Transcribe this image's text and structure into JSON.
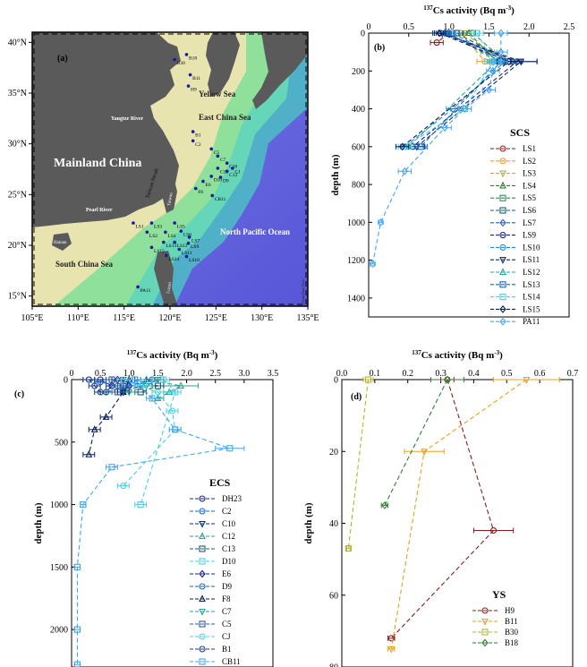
{
  "figure": {
    "map": {
      "panel_label": "(a)",
      "regions": {
        "mainland": "Mainland China",
        "yellow_sea": "Yellow Sea",
        "east_china_sea": "East China Sea",
        "south_china_sea": "South China Sea",
        "north_pacific": "North Pacific Ocean",
        "yangtze": "Yangtze River",
        "pearl": "Pearl River",
        "taiwan_strait": "Taiwan Strait",
        "taiwan": "Taiwan",
        "luzon": "Luzon",
        "hainan": "Hainan",
        "odv": "Ocean Data View"
      },
      "lon_ticks": [
        "105°E",
        "110°E",
        "115°E",
        "120°E",
        "125°E",
        "130°E",
        "135°E"
      ],
      "lat_ticks": [
        "40°N",
        "35°N",
        "30°N",
        "25°N",
        "20°N",
        "15°N"
      ],
      "stations": [
        {
          "name": "B18",
          "lon": 121.8,
          "lat": 38.8
        },
        {
          "name": "B30",
          "lon": 120.5,
          "lat": 38.3
        },
        {
          "name": "B11",
          "lon": 122.2,
          "lat": 36.8
        },
        {
          "name": "H9",
          "lon": 122.0,
          "lat": 35.7
        },
        {
          "name": "B1",
          "lon": 122.5,
          "lat": 31.2
        },
        {
          "name": "C2",
          "lon": 122.5,
          "lat": 30.3
        },
        {
          "name": "C5",
          "lon": 124.5,
          "lat": 29.5
        },
        {
          "name": "C7",
          "lon": 125.2,
          "lat": 28.8
        },
        {
          "name": "C10",
          "lon": 126.2,
          "lat": 28.1
        },
        {
          "name": "CJ",
          "lon": 126.8,
          "lat": 27.6
        },
        {
          "name": "C13",
          "lon": 125.2,
          "lat": 27.6
        },
        {
          "name": "C12",
          "lon": 126.2,
          "lat": 27.3
        },
        {
          "name": "D10",
          "lon": 124.5,
          "lat": 26.8
        },
        {
          "name": "D9",
          "lon": 125.5,
          "lat": 26.7
        },
        {
          "name": "E6",
          "lon": 123.6,
          "lat": 26.3
        },
        {
          "name": "F8",
          "lon": 122.8,
          "lat": 25.6
        },
        {
          "name": "CB11",
          "lon": 124.6,
          "lat": 24.9
        },
        {
          "name": "LS1",
          "lon": 116.0,
          "lat": 22.2
        },
        {
          "name": "LS3",
          "lon": 118.0,
          "lat": 22.2
        },
        {
          "name": "LS5",
          "lon": 120.5,
          "lat": 22.2
        },
        {
          "name": "LS2",
          "lon": 117.5,
          "lat": 21.3
        },
        {
          "name": "LS4",
          "lon": 119.5,
          "lat": 21.3
        },
        {
          "name": "LS6",
          "lon": 121.2,
          "lat": 21.4
        },
        {
          "name": "LS7",
          "lon": 122.1,
          "lat": 20.8
        },
        {
          "name": "LS13",
          "lon": 119.3,
          "lat": 20.3
        },
        {
          "name": "LS12",
          "lon": 120.5,
          "lat": 20.3
        },
        {
          "name": "LS9",
          "lon": 122.0,
          "lat": 20.2
        },
        {
          "name": "LS15",
          "lon": 118.0,
          "lat": 19.8
        },
        {
          "name": "LS11",
          "lon": 121.0,
          "lat": 19.6
        },
        {
          "name": "LS14",
          "lon": 119.6,
          "lat": 19.0
        },
        {
          "name": "LS10",
          "lon": 121.8,
          "lat": 18.9
        },
        {
          "name": "PA11",
          "lon": 116.5,
          "lat": 15.9
        }
      ]
    }
  },
  "chart_data": [
    {
      "panel_label": "(b)",
      "type": "line",
      "title": "137Cs activity (Bq m-3)",
      "xlabel": "137Cs activity (Bq m-3)",
      "ylabel": "depth (m)",
      "xlim": [
        0,
        2.5
      ],
      "ylim": [
        0,
        1500
      ],
      "y_reversed": true,
      "x_ticks": [
        0,
        0.5,
        1.0,
        1.5,
        2.0,
        2.5
      ],
      "x_tick_labels": [
        "0",
        "0.5",
        "1.0",
        "1.5",
        "2.0",
        "2.5"
      ],
      "y_ticks": [
        0,
        200,
        400,
        600,
        800,
        1000,
        1200,
        1400
      ],
      "y_tick_labels": [
        "0",
        "200",
        "400",
        "600",
        "800",
        "1000",
        "1200",
        "1400"
      ],
      "legend_title": "SCS",
      "legend_position": "lower-right",
      "series": [
        {
          "name": "LS1",
          "color": "#8b1a1a",
          "marker": "circle",
          "x": [
            1.0,
            0.85
          ],
          "y": [
            0,
            50
          ],
          "err": [
            0.08,
            0.08
          ]
        },
        {
          "name": "LS2",
          "color": "#e8a020",
          "marker": "circle",
          "x": [
            1.15,
            1.45
          ],
          "y": [
            0,
            150
          ],
          "err": [
            0.08,
            0.1
          ]
        },
        {
          "name": "LS3",
          "color": "#b5b52c",
          "marker": "triangle-down",
          "x": [
            1.2,
            1.5
          ],
          "y": [
            0,
            100
          ],
          "err": [
            0.08,
            0.1
          ]
        },
        {
          "name": "LS4",
          "color": "#2e7d32",
          "marker": "triangle-up",
          "x": [
            1.25,
            1.6
          ],
          "y": [
            0,
            150
          ],
          "err": [
            0.08,
            0.1
          ]
        },
        {
          "name": "LS5",
          "color": "#2e8b57",
          "marker": "square",
          "x": [
            1.3,
            1.7
          ],
          "y": [
            0,
            150
          ],
          "err": [
            0.08,
            0.1
          ]
        },
        {
          "name": "LS6",
          "color": "#1e5b6e",
          "marker": "square",
          "x": [
            1.1,
            1.75
          ],
          "y": [
            0,
            150
          ],
          "err": [
            0.08,
            0.1
          ]
        },
        {
          "name": "LS7",
          "color": "#2c5aa0",
          "marker": "diamond",
          "x": [
            0.95,
            1.8
          ],
          "y": [
            0,
            150
          ],
          "err": [
            0.08,
            0.12
          ]
        },
        {
          "name": "LS9",
          "color": "#1a237e",
          "marker": "circle",
          "x": [
            0.9,
            1.85,
            0.55
          ],
          "y": [
            0,
            150,
            600
          ],
          "err": [
            0.08,
            0.25,
            0.15
          ]
        },
        {
          "name": "LS10",
          "color": "#1e88e5",
          "marker": "circle",
          "x": [
            1.05,
            1.7,
            1.05,
            0.45
          ],
          "y": [
            0,
            150,
            400,
            600
          ],
          "err": [
            0.08,
            0.15,
            0.08,
            0.08
          ]
        },
        {
          "name": "LS11",
          "color": "#0d2a6e",
          "marker": "triangle-down",
          "x": [
            0.92,
            1.9,
            0.6
          ],
          "y": [
            0,
            150,
            600
          ],
          "err": [
            0.08,
            0.2,
            0.1
          ]
        },
        {
          "name": "LS12",
          "color": "#26a69a",
          "marker": "triangle-up",
          "x": [
            1.0,
            1.6,
            0.5
          ],
          "y": [
            0,
            150,
            600
          ],
          "err": [
            0.08,
            0.12,
            0.08
          ]
        },
        {
          "name": "LS13",
          "color": "#1565c0",
          "marker": "square",
          "x": [
            0.98,
            1.65,
            0.65
          ],
          "y": [
            0,
            150,
            600
          ],
          "err": [
            0.08,
            0.12,
            0.08
          ]
        },
        {
          "name": "LS14",
          "color": "#4dd0e1",
          "marker": "square",
          "x": [
            1.35,
            1.55,
            1.2,
            0.45
          ],
          "y": [
            0,
            150,
            400,
            600
          ],
          "err": [
            0.08,
            0.1,
            0.08,
            0.08
          ]
        },
        {
          "name": "LS15",
          "color": "#0a1f5c",
          "marker": "diamond",
          "x": [
            0.88,
            1.75,
            0.42
          ],
          "y": [
            0,
            150,
            600
          ],
          "err": [
            0.08,
            0.15,
            0.08
          ]
        },
        {
          "name": "PA11",
          "color": "#42a5f5",
          "marker": "diamond",
          "x": [
            1.65,
            1.65,
            1.65,
            1.55,
            1.5,
            1.2,
            0.95,
            0.45,
            0.15,
            0.05
          ],
          "y": [
            0,
            100,
            150,
            200,
            300,
            400,
            500,
            730,
            1000,
            1220
          ],
          "err": [
            0.08,
            0.08,
            0.08,
            0.08,
            0.08,
            0.08,
            0.08,
            0.08,
            0.03,
            0.03
          ]
        }
      ]
    },
    {
      "panel_label": "(c)",
      "type": "line",
      "title": "137Cs activity (Bq m-3)",
      "xlabel": "137Cs activity (Bq m-3)",
      "ylabel": "depth (m)",
      "xlim": [
        0,
        3.5
      ],
      "ylim": [
        0,
        2300
      ],
      "y_reversed": true,
      "x_ticks": [
        0,
        0.5,
        1.0,
        1.5,
        2.0,
        2.5,
        3.0,
        3.5
      ],
      "x_tick_labels": [
        "0",
        "0.5",
        "1.0",
        "1.5",
        "2.0",
        "2.5",
        "3.0",
        "3.5"
      ],
      "y_ticks": [
        0,
        500,
        1000,
        1500,
        2000
      ],
      "y_tick_labels": [
        "0",
        "500",
        "1000",
        "1500",
        "2000"
      ],
      "legend_title": "ECS",
      "legend_position": "lower-right",
      "series": [
        {
          "name": "DH23",
          "color": "#1a237e",
          "marker": "circle",
          "x": [
            0.5,
            0.7,
            0.6
          ],
          "y": [
            0,
            50,
            100
          ],
          "err": [
            0.1,
            0.1,
            0.1
          ]
        },
        {
          "name": "C2",
          "color": "#1565c0",
          "marker": "circle",
          "x": [
            0.3,
            0.5,
            0.8
          ],
          "y": [
            0,
            20,
            50
          ],
          "err": [
            0.1,
            0.1,
            0.1
          ]
        },
        {
          "name": "C10",
          "color": "#0d2a6e",
          "marker": "triangle-down",
          "x": [
            0.9,
            1.2,
            0.9
          ],
          "y": [
            0,
            50,
            100
          ],
          "err": [
            0.1,
            0.1,
            0.1
          ]
        },
        {
          "name": "C12",
          "color": "#26a69a",
          "marker": "triangle-up",
          "x": [
            1.3,
            1.9,
            1.7,
            1.5
          ],
          "y": [
            0,
            50,
            100,
            150
          ],
          "err": [
            0.1,
            0.3,
            0.1,
            0.1
          ]
        },
        {
          "name": "C13",
          "color": "#1e5b6e",
          "marker": "square",
          "x": [
            1.1,
            1.5,
            1.2
          ],
          "y": [
            0,
            50,
            100
          ],
          "err": [
            0.1,
            0.1,
            0.1
          ]
        },
        {
          "name": "D10",
          "color": "#4dd0e1",
          "marker": "square",
          "x": [
            1.6,
            1.8,
            1.2
          ],
          "y": [
            0,
            100,
            1000
          ],
          "err": [
            0.1,
            0.1,
            0.1
          ]
        },
        {
          "name": "E6",
          "color": "#1a237e",
          "marker": "diamond",
          "x": [
            0.8,
            1.0,
            0.9
          ],
          "y": [
            0,
            50,
            100
          ],
          "err": [
            0.1,
            0.1,
            0.1
          ]
        },
        {
          "name": "D9",
          "color": "#1565c0",
          "marker": "circle",
          "x": [
            1.4,
            1.0,
            0.6
          ],
          "y": [
            0,
            50,
            100
          ],
          "err": [
            0.1,
            0.1,
            0.1
          ]
        },
        {
          "name": "F8",
          "color": "#0a1f5c",
          "marker": "triangle-up",
          "x": [
            1.0,
            0.9,
            0.6,
            0.4,
            0.3
          ],
          "y": [
            0,
            100,
            300,
            400,
            600
          ],
          "err": [
            0.1,
            0.1,
            0.1,
            0.1,
            0.1
          ]
        },
        {
          "name": "C7",
          "color": "#26a69a",
          "marker": "triangle-down",
          "x": [
            1.5,
            1.3,
            1.0
          ],
          "y": [
            0,
            50,
            100
          ],
          "err": [
            0.1,
            0.1,
            0.1
          ]
        },
        {
          "name": "C5",
          "color": "#2c5aa0",
          "marker": "square",
          "x": [
            0.7,
            0.9,
            0.8
          ],
          "y": [
            0,
            50,
            100
          ],
          "err": [
            0.1,
            0.1,
            0.1
          ]
        },
        {
          "name": "CJ",
          "color": "#4dd0e1",
          "marker": "circle",
          "x": [
            0.9,
            1.2,
            1.5,
            1.75,
            1.8,
            0.9
          ],
          "y": [
            0,
            50,
            100,
            250,
            400,
            850
          ],
          "err": [
            0.1,
            0.1,
            0.1,
            0.1,
            0.1,
            0.1
          ]
        },
        {
          "name": "B1",
          "color": "#1e3a8a",
          "marker": "circle",
          "x": [
            0.3,
            0.4,
            0.5
          ],
          "y": [
            0,
            50,
            100
          ],
          "err": [
            0.1,
            0.1,
            0.1
          ]
        },
        {
          "name": "CB11",
          "color": "#42a5f5",
          "marker": "square",
          "x": [
            1.1,
            1.4,
            1.8,
            2.75,
            0.7,
            0.2,
            0.1,
            0.1,
            0.1
          ],
          "y": [
            0,
            150,
            400,
            550,
            700,
            1000,
            1500,
            2000,
            2280
          ],
          "err": [
            0.1,
            0.1,
            0.1,
            0.25,
            0.1,
            0.05,
            0.05,
            0.05,
            0.05
          ]
        }
      ]
    },
    {
      "panel_label": "(d)",
      "type": "line",
      "title": "137Cs activity (Bq m-3)",
      "xlabel": "137Cs activity (Bq m-3)",
      "ylabel": "depth (m)",
      "xlim": [
        0,
        0.7
      ],
      "ylim": [
        0,
        80
      ],
      "y_reversed": true,
      "x_ticks": [
        0,
        0.1,
        0.2,
        0.3,
        0.4,
        0.5,
        0.6,
        0.7
      ],
      "x_tick_labels": [
        "0.0",
        "0.1",
        "0.2",
        "0.3",
        "0.4",
        "0.5",
        "0.6",
        "0.7"
      ],
      "y_ticks": [
        0,
        20,
        40,
        60,
        80
      ],
      "y_tick_labels": [
        "0",
        "20",
        "40",
        "60",
        "80"
      ],
      "legend_title": "YS",
      "legend_position": "lower-right",
      "series": [
        {
          "name": "H9",
          "color": "#8b1a1a",
          "marker": "circle",
          "x": [
            0.32,
            0.46,
            0.15
          ],
          "y": [
            0,
            42,
            72
          ],
          "err": [
            0.02,
            0.06,
            0.01
          ]
        },
        {
          "name": "B11",
          "color": "#e8a020",
          "marker": "triangle-down",
          "x": [
            0.56,
            0.25,
            0.15
          ],
          "y": [
            0,
            20,
            75
          ],
          "err": [
            0.1,
            0.06,
            0.01
          ]
        },
        {
          "name": "B30",
          "color": "#b5b52c",
          "marker": "square",
          "x": [
            0.08,
            0.02
          ],
          "y": [
            0,
            47
          ],
          "err": [
            0.015,
            0.005
          ]
        },
        {
          "name": "B18",
          "color": "#2e7d32",
          "marker": "diamond",
          "x": [
            0.32,
            0.13
          ],
          "y": [
            0,
            35
          ],
          "err": [
            0.05,
            0.01
          ]
        }
      ]
    }
  ]
}
